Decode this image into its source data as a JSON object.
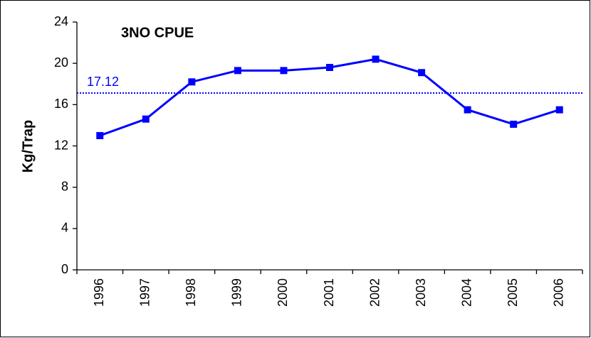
{
  "chart_data": {
    "type": "line",
    "title": "3NO CPUE",
    "y_label": "Kg/Trap",
    "categories": [
      "1996",
      "1997",
      "1998",
      "1999",
      "2000",
      "2001",
      "2002",
      "2003",
      "2004",
      "2005",
      "2006"
    ],
    "values": [
      13.0,
      14.6,
      18.2,
      19.3,
      19.3,
      19.6,
      20.4,
      19.1,
      15.5,
      14.1,
      15.5
    ],
    "color": "#0000ff",
    "ylim": [
      0,
      24
    ],
    "yticks": [
      0,
      4,
      8,
      12,
      16,
      20,
      24
    ],
    "reference_line": {
      "value": 17.12,
      "color": "#0000ff",
      "style": "dotted"
    },
    "grid": false
  }
}
